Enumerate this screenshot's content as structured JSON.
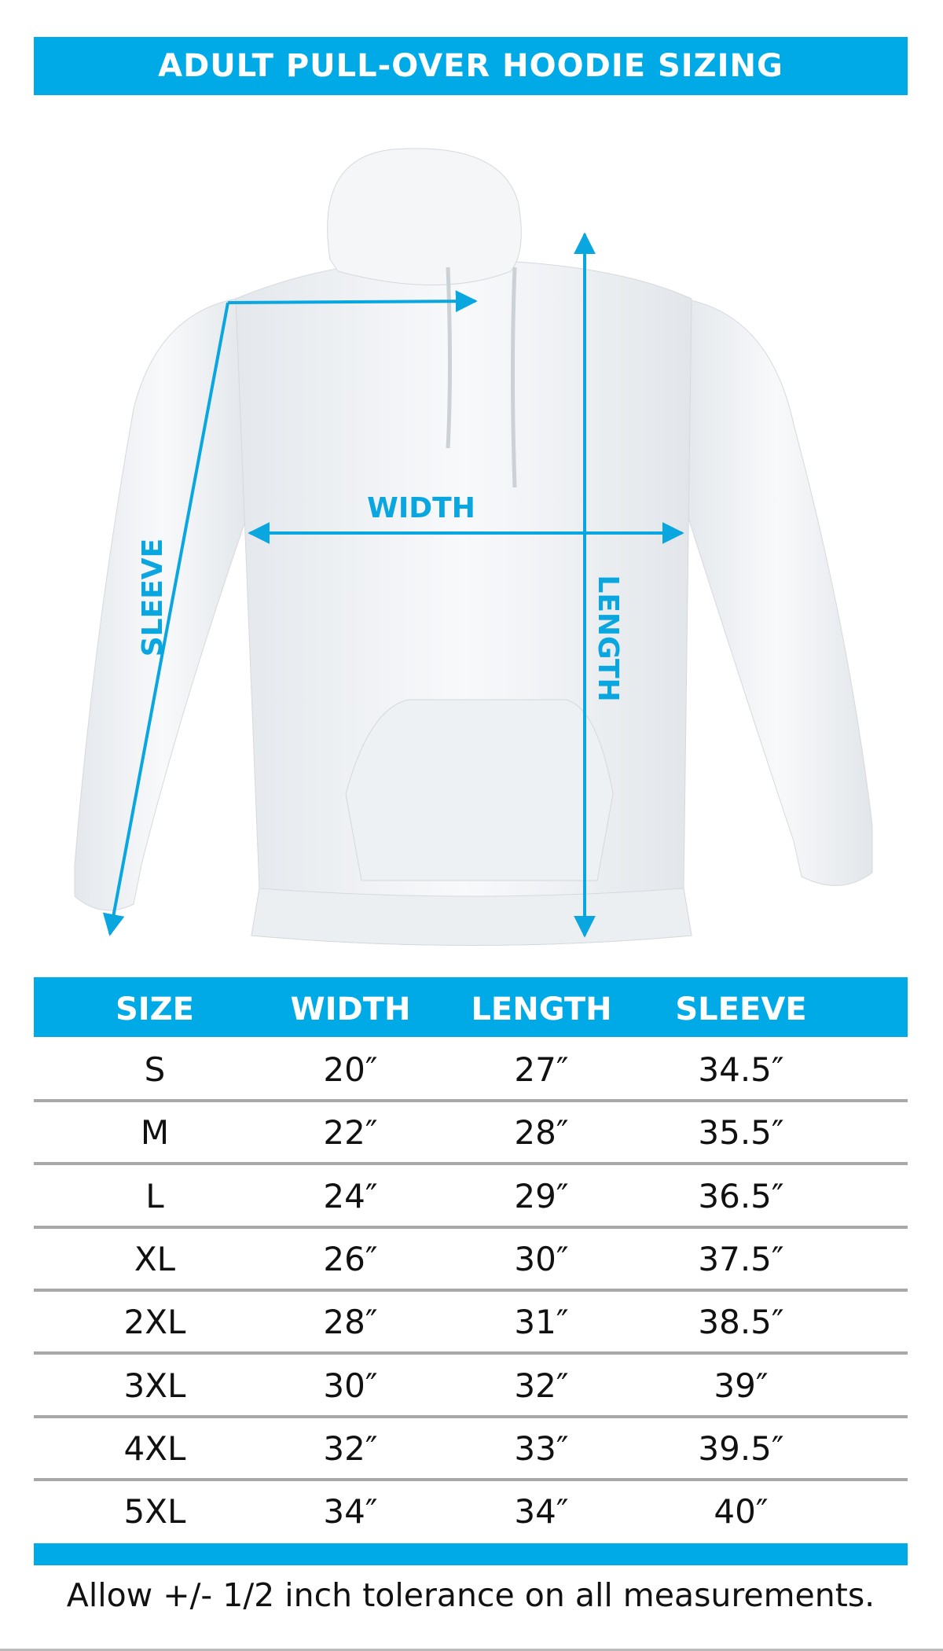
{
  "title": "ADULT PULL-OVER HOODIE SIZING",
  "diagram": {
    "labels": {
      "width": "WIDTH",
      "length": "LENGTH",
      "sleeve": "SLEEVE"
    },
    "arrow_color": "#0aa6e0"
  },
  "table": {
    "headers": [
      "SIZE",
      "WIDTH",
      "LENGTH",
      "SLEEVE"
    ],
    "rows": [
      [
        "S",
        "20″",
        "27″",
        "34.5″"
      ],
      [
        "M",
        "22″",
        "28″",
        "35.5″"
      ],
      [
        "L",
        "24″",
        "29″",
        "36.5″"
      ],
      [
        "XL",
        "26″",
        "30″",
        "37.5″"
      ],
      [
        "2XL",
        "28″",
        "31″",
        "38.5″"
      ],
      [
        "3XL",
        "30″",
        "32″",
        "39″"
      ],
      [
        "4XL",
        "32″",
        "33″",
        "39.5″"
      ],
      [
        "5XL",
        "34″",
        "34″",
        "40″"
      ]
    ]
  },
  "accent_color": "#00aae6",
  "footer": "Allow +/- 1/2 inch tolerance on all measurements."
}
